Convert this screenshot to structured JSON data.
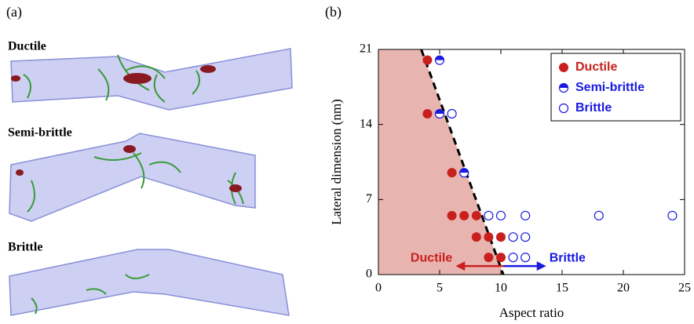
{
  "panel_a": {
    "label": "(a)",
    "images": [
      "Ductile",
      "Semi-brittle",
      "Brittle"
    ]
  },
  "chart_data": {
    "type": "scatter",
    "panel_label": "(b)",
    "x_label": "Aspect ratio",
    "y_label": "Lateral dimension (nm)",
    "xlim": [
      0,
      25
    ],
    "ylim": [
      0,
      21
    ],
    "xticks": [
      0,
      5,
      10,
      15,
      20,
      25
    ],
    "yticks": [
      0,
      7,
      14,
      21
    ],
    "legend": "upper right",
    "series": [
      {
        "name": "Ductile",
        "color": "#c8201e",
        "marker": "filled",
        "x": [
          4,
          4,
          6,
          6,
          7,
          8,
          8,
          9,
          10,
          9,
          10
        ],
        "values": [
          20,
          15,
          9.5,
          5.5,
          5.5,
          5.5,
          3.5,
          3.5,
          3.5,
          1.6,
          1.6
        ]
      },
      {
        "name": "Semi-brittle",
        "color": "#1a1ae0",
        "marker": "half",
        "x": [
          5,
          5,
          7
        ],
        "values": [
          20,
          15,
          9.5
        ]
      },
      {
        "name": "Brittle",
        "color": "#1a1ae0",
        "marker": "open",
        "x": [
          6,
          9,
          10,
          12,
          18,
          24,
          11,
          12,
          11,
          12
        ],
        "values": [
          15,
          5.5,
          5.5,
          5.5,
          5.5,
          5.5,
          3.5,
          3.5,
          1.6,
          1.6
        ]
      }
    ],
    "boundary": {
      "x": [
        3.5,
        10.2
      ],
      "values": [
        21,
        0
      ],
      "shade": "#e8b4b0"
    },
    "annotations": [
      {
        "text": "Ductile",
        "color": "#c8201e",
        "arrow_x": [
          10.2,
          6.3
        ],
        "y": 0.8
      },
      {
        "text": "Brittle",
        "color": "#1a1ae0",
        "arrow_x": [
          10.2,
          13.7
        ],
        "y": 0.8
      }
    ]
  }
}
